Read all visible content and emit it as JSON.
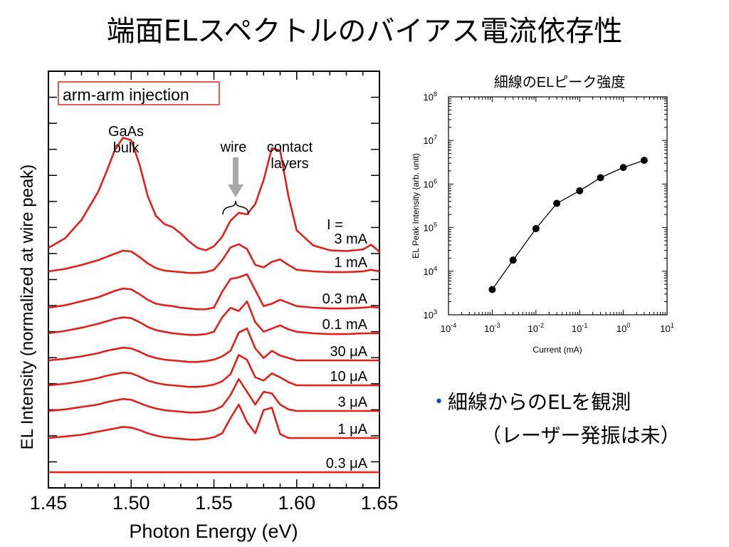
{
  "slide": {
    "title": "端面ELスペクトルのバイアス電流依存性",
    "bullet": "細線からのELを観測",
    "bullet_sub": "（レーザー発振は未）"
  },
  "chart_data": [
    {
      "type": "line",
      "title": "",
      "xlabel": "Photon Energy (eV)",
      "ylabel": "EL Intensity (normalized at wire peak)",
      "xlim": [
        1.45,
        1.65
      ],
      "xticks": [
        "1.45",
        "1.50",
        "1.55",
        "1.60",
        "1.65"
      ],
      "legend_box": "arm-arm injection",
      "annotations": {
        "bulk": [
          "GaAs",
          "bulk"
        ],
        "wire": "wire",
        "contact": [
          "contact",
          "layers"
        ],
        "current_header": "I ="
      },
      "x": [
        1.45,
        1.46,
        1.47,
        1.48,
        1.485,
        1.49,
        1.495,
        1.5,
        1.505,
        1.51,
        1.515,
        1.52,
        1.525,
        1.53,
        1.535,
        1.54,
        1.545,
        1.55,
        1.555,
        1.56,
        1.565,
        1.57,
        1.575,
        1.58,
        1.585,
        1.59,
        1.595,
        1.6,
        1.61,
        1.62,
        1.63,
        1.64,
        1.645,
        1.65
      ],
      "series": [
        {
          "name": "3 mA",
          "values": [
            0.0,
            0.12,
            0.35,
            0.7,
            0.95,
            1.22,
            1.38,
            1.35,
            1.05,
            0.65,
            0.4,
            0.3,
            0.26,
            0.18,
            0.08,
            0.0,
            -0.03,
            0.02,
            0.14,
            0.34,
            0.44,
            0.42,
            0.55,
            0.85,
            1.25,
            1.22,
            0.65,
            0.22,
            0.03,
            -0.03,
            -0.04,
            -0.02,
            0.04,
            -0.05
          ]
        },
        {
          "name": "1 mA",
          "values": [
            0.0,
            0.03,
            0.08,
            0.14,
            0.18,
            0.22,
            0.26,
            0.25,
            0.18,
            0.1,
            0.04,
            0.01,
            0.0,
            -0.01,
            -0.02,
            -0.02,
            -0.01,
            0.02,
            0.14,
            0.3,
            0.34,
            0.28,
            0.08,
            0.05,
            0.12,
            0.15,
            0.08,
            0.02,
            0.0,
            -0.01,
            -0.01,
            0.0,
            0.02,
            0.0
          ]
        },
        {
          "name": "0.3 mA",
          "values": [
            0.0,
            0.03,
            0.08,
            0.13,
            0.17,
            0.21,
            0.24,
            0.23,
            0.17,
            0.1,
            0.05,
            0.03,
            0.02,
            0.0,
            -0.01,
            -0.02,
            -0.02,
            0.0,
            0.2,
            0.36,
            0.38,
            0.42,
            0.22,
            0.02,
            0.05,
            0.1,
            0.06,
            0.02,
            0.0,
            -0.01,
            -0.01,
            0.0,
            0.01,
            0.0
          ]
        },
        {
          "name": "0.1 mA",
          "values": [
            0.0,
            0.03,
            0.07,
            0.12,
            0.15,
            0.18,
            0.2,
            0.19,
            0.14,
            0.08,
            0.04,
            0.02,
            0.0,
            -0.01,
            -0.02,
            -0.02,
            -0.01,
            0.02,
            0.2,
            0.32,
            0.28,
            0.4,
            0.14,
            0.02,
            0.06,
            0.1,
            0.05,
            0.02,
            0.0,
            -0.01,
            -0.01,
            0.0,
            0.0,
            0.0
          ]
        },
        {
          "name": "30 μA",
          "values": [
            0.0,
            0.02,
            0.05,
            0.09,
            0.12,
            0.14,
            0.16,
            0.15,
            0.11,
            0.06,
            0.03,
            0.01,
            0.0,
            -0.01,
            -0.02,
            -0.02,
            -0.01,
            0.01,
            0.05,
            0.12,
            0.35,
            0.4,
            0.15,
            0.03,
            0.12,
            0.06,
            0.03,
            0.0,
            0.0,
            0.0,
            0.0,
            0.0,
            0.0,
            0.0
          ]
        },
        {
          "name": "10 μA",
          "values": [
            0.0,
            0.02,
            0.05,
            0.09,
            0.12,
            0.14,
            0.16,
            0.15,
            0.11,
            0.06,
            0.03,
            0.01,
            0.0,
            -0.01,
            -0.02,
            -0.02,
            -0.01,
            0.01,
            0.05,
            0.14,
            0.38,
            0.32,
            0.1,
            0.06,
            0.15,
            0.1,
            0.04,
            0.0,
            0.0,
            0.0,
            0.0,
            0.0,
            0.0,
            0.0
          ]
        },
        {
          "name": "3 μA",
          "values": [
            0.0,
            0.02,
            0.05,
            0.08,
            0.11,
            0.13,
            0.15,
            0.14,
            0.1,
            0.06,
            0.03,
            0.01,
            0.0,
            -0.01,
            -0.02,
            -0.02,
            -0.01,
            0.01,
            0.06,
            0.2,
            0.4,
            0.24,
            0.08,
            0.24,
            0.22,
            0.08,
            0.02,
            0.0,
            0.0,
            0.0,
            0.0,
            0.0,
            0.0,
            0.0
          ]
        },
        {
          "name": "1 μA",
          "values": [
            0.0,
            0.02,
            0.04,
            0.08,
            0.1,
            0.12,
            0.14,
            0.13,
            0.1,
            0.06,
            0.03,
            0.01,
            0.0,
            -0.01,
            -0.02,
            -0.02,
            -0.01,
            0.01,
            0.06,
            0.25,
            0.42,
            0.2,
            0.06,
            0.35,
            0.38,
            0.05,
            0.0,
            0.0,
            0.0,
            0.0,
            0.0,
            0.0,
            0.0,
            0.0
          ]
        },
        {
          "name": "0.3 μA",
          "values": [
            0.0,
            0.0,
            0.0,
            0.0,
            0.0,
            0.0,
            0.0,
            0.0,
            0.0,
            0.0,
            0.0,
            0.0,
            0.0,
            0.0,
            0.0,
            0.0,
            0.0,
            0.0,
            0.0,
            0.0,
            0.0,
            0.0,
            0.0,
            0.0,
            0.0,
            0.0,
            0.0,
            0.0,
            0.0,
            0.0,
            0.0,
            0.0,
            0.0,
            0.0
          ]
        }
      ],
      "grid": false,
      "color": "#e0201a"
    },
    {
      "type": "scatter",
      "title": "細線のELピーク強度",
      "xlabel": "Current (mA)",
      "ylabel": "EL Peak Intensity (arb. unit)",
      "xscale": "log",
      "yscale": "log",
      "xlim": [
        0.0001,
        10
      ],
      "ylim": [
        1000,
        100000000
      ],
      "x_tick_exponents": [
        "-4",
        "-3",
        "-2",
        "-1",
        "0",
        "1"
      ],
      "y_tick_exponents": [
        "3",
        "4",
        "5",
        "6",
        "7",
        "8"
      ],
      "x": [
        0.001,
        0.003,
        0.01,
        0.03,
        0.1,
        0.3,
        1,
        3
      ],
      "y": [
        3800,
        18000,
        95000,
        360000,
        700000,
        1400000,
        2400000,
        3500000
      ],
      "grid": false
    }
  ]
}
